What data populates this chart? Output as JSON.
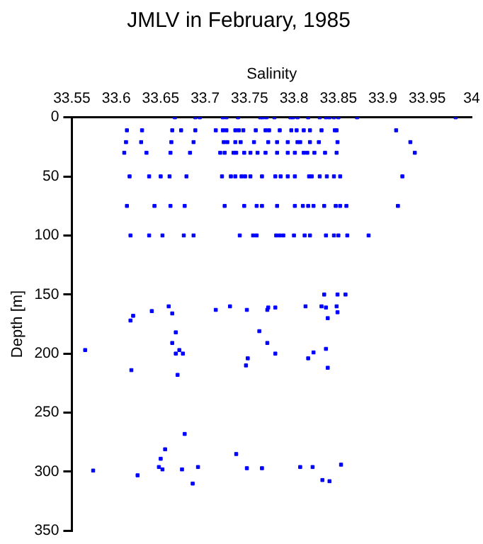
{
  "chart_data": {
    "type": "scatter",
    "title": "JMLV in February, 1985",
    "xlabel": "Salinity",
    "ylabel": "Depth [m]",
    "marker": "square",
    "grid": false,
    "legend": false,
    "xlim": [
      33.55,
      34
    ],
    "xticks": [
      33.55,
      33.6,
      33.65,
      33.7,
      33.75,
      33.8,
      33.85,
      33.9,
      33.95,
      34
    ],
    "ylim": [
      350,
      0
    ],
    "yticks": [
      0,
      50,
      100,
      150,
      200,
      250,
      300,
      350
    ],
    "series": [
      {
        "color": "#0000ff",
        "x": [
          33.666,
          33.689,
          33.694,
          33.72,
          33.724,
          33.737,
          33.762,
          33.765,
          33.769,
          33.778,
          33.796,
          33.799,
          33.804,
          33.816,
          33.829,
          33.836,
          33.84,
          33.845,
          33.85,
          33.871,
          33.982,
          33.612,
          33.629,
          33.663,
          33.673,
          33.689,
          33.712,
          33.72,
          33.724,
          33.734,
          33.738,
          33.743,
          33.757,
          33.768,
          33.772,
          33.784,
          33.797,
          33.803,
          33.811,
          33.818,
          33.831,
          33.846,
          33.848,
          33.915,
          33.611,
          33.628,
          33.662,
          33.687,
          33.721,
          33.725,
          33.734,
          33.74,
          33.755,
          33.771,
          33.781,
          33.793,
          33.804,
          33.807,
          33.818,
          33.828,
          33.849,
          33.931,
          33.609,
          33.634,
          33.661,
          33.683,
          33.717,
          33.722,
          33.732,
          33.735,
          33.744,
          33.751,
          33.759,
          33.768,
          33.781,
          33.793,
          33.801,
          33.811,
          33.815,
          33.823,
          33.835,
          33.848,
          33.936,
          33.615,
          33.637,
          33.65,
          33.66,
          33.679,
          33.719,
          33.729,
          33.734,
          33.741,
          33.745,
          33.751,
          33.764,
          33.779,
          33.785,
          33.793,
          33.801,
          33.817,
          33.82,
          33.829,
          33.837,
          33.845,
          33.852,
          33.922,
          33.612,
          33.643,
          33.661,
          33.677,
          33.722,
          33.744,
          33.758,
          33.764,
          33.781,
          33.801,
          33.81,
          33.816,
          33.822,
          33.834,
          33.847,
          33.852,
          33.859,
          33.917,
          33.616,
          33.637,
          33.652,
          33.676,
          33.687,
          33.739,
          33.754,
          33.758,
          33.78,
          33.784,
          33.788,
          33.8,
          33.812,
          33.818,
          33.836,
          33.845,
          33.85,
          33.86,
          33.884,
          33.834,
          33.849,
          33.858,
          33.659,
          33.813,
          33.831,
          33.848,
          33.728,
          33.771,
          33.779,
          33.712,
          33.747,
          33.77,
          33.836,
          33.64,
          33.849,
          33.663,
          33.619,
          33.616,
          33.838,
          33.667,
          33.761,
          33.663,
          33.77,
          33.565,
          33.671,
          33.836,
          33.667,
          33.675,
          33.779,
          33.822,
          33.748,
          33.816,
          33.746,
          33.838,
          33.617,
          33.669,
          33.677,
          33.655,
          33.735,
          33.65,
          33.853,
          33.648,
          33.692,
          33.807,
          33.821,
          33.747,
          33.764,
          33.652,
          33.674,
          33.574,
          33.624,
          33.832,
          33.84,
          33.686
        ],
        "values": [
          0,
          0,
          0,
          0,
          0,
          0,
          0,
          0,
          0,
          0,
          0,
          0,
          0,
          0,
          0,
          0,
          0,
          0,
          0,
          0,
          0,
          11,
          11,
          11,
          11,
          11,
          11,
          11,
          11,
          11,
          11,
          11,
          11,
          11,
          11,
          11,
          11,
          11,
          11,
          11,
          11,
          11,
          11,
          11,
          21,
          21,
          21,
          21,
          21,
          21,
          21,
          21,
          21,
          21,
          21,
          21,
          21,
          21,
          21,
          21,
          21,
          21,
          30,
          30,
          30,
          30,
          30,
          30,
          30,
          30,
          30,
          30,
          30,
          30,
          30,
          30,
          30,
          30,
          30,
          30,
          30,
          30,
          30,
          50,
          50,
          50,
          50,
          50,
          50,
          50,
          50,
          50,
          50,
          50,
          50,
          50,
          50,
          50,
          50,
          50,
          50,
          50,
          50,
          50,
          50,
          50,
          75,
          75,
          75,
          75,
          75,
          75,
          75,
          75,
          75,
          75,
          75,
          75,
          75,
          75,
          75,
          75,
          75,
          75,
          100,
          100,
          100,
          100,
          100,
          100,
          100,
          100,
          100,
          100,
          100,
          100,
          100,
          100,
          100,
          100,
          100,
          100,
          100,
          150,
          150,
          150,
          160,
          160,
          160,
          160,
          160,
          161,
          161,
          163,
          163,
          163,
          161,
          164,
          165,
          166,
          168,
          172,
          170,
          182,
          181,
          191,
          191,
          197,
          197,
          196,
          200,
          200,
          200,
          199,
          204,
          204,
          210,
          212,
          214,
          218,
          268,
          281,
          285,
          289,
          294,
          296,
          296,
          296,
          296,
          297,
          297,
          298,
          298,
          299,
          303,
          307,
          308,
          310
        ]
      }
    ]
  }
}
